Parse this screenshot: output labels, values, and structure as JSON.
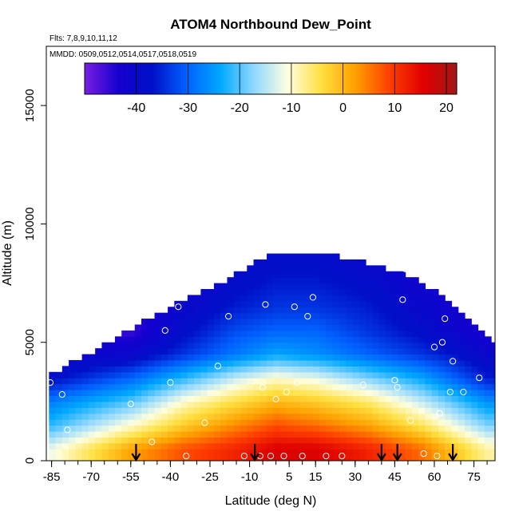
{
  "chart_data": {
    "type": "heatmap",
    "title": "ATOM4 Northbound Dew_Point",
    "flights_note": "Flts: 7,8,9,10,11,12",
    "dates_note": "MMDD: 0509,0512,0514,0517,0518,0519",
    "xlabel": "Latitude (deg N)",
    "ylabel": "Altitude (m)",
    "xlim": [
      -87,
      83
    ],
    "ylim": [
      0,
      17500
    ],
    "x_ticks": [
      -85,
      -70,
      -55,
      -40,
      -25,
      -10,
      5,
      15,
      30,
      45,
      60,
      75
    ],
    "y_ticks": [
      0,
      5000,
      10000,
      15000
    ],
    "colorbar": {
      "range": [
        -50,
        22
      ],
      "ticks": [
        -40,
        -30,
        -20,
        -10,
        0,
        10,
        20
      ],
      "colors": [
        "#7a1ee0",
        "#1500d0",
        "#0010c8",
        "#0060ff",
        "#00a8ff",
        "#8fd8ff",
        "#ffffe0",
        "#ffe040",
        "#ffa000",
        "#ff4000",
        "#e00000",
        "#a01818"
      ]
    },
    "dewpoint_profile": {
      "description_levels_m": [
        500,
        1500,
        2500,
        3500,
        4500,
        5500,
        6500,
        7500,
        8500
      ],
      "lat_nodes": [
        -86,
        -55,
        -35,
        -15,
        0,
        15,
        35,
        55,
        80
      ],
      "values": [
        [
          -12,
          2,
          8,
          12,
          16,
          16,
          12,
          6,
          -8
        ],
        [
          -22,
          -10,
          -2,
          4,
          8,
          6,
          2,
          -5,
          -18
        ],
        [
          -28,
          -20,
          -10,
          -4,
          0,
          -2,
          -6,
          -14,
          -26
        ],
        [
          -38,
          -30,
          -22,
          -14,
          -10,
          -12,
          -18,
          -24,
          -36
        ],
        [
          -42,
          -40,
          -34,
          -28,
          -24,
          -26,
          -30,
          -34,
          -40
        ],
        [
          -44,
          -46,
          -38,
          -32,
          -30,
          -30,
          -34,
          -38,
          -44
        ],
        [
          -44,
          -44,
          -40,
          -36,
          -34,
          -34,
          -36,
          -40,
          -44
        ],
        [
          -44,
          -44,
          -42,
          -38,
          -36,
          -36,
          -38,
          -42,
          -44
        ],
        [
          -44,
          -44,
          -42,
          -40,
          -38,
          -38,
          -40,
          -42,
          -44
        ]
      ]
    },
    "profile_tops_m": {
      "lat_nodes": [
        -86,
        -78,
        -68,
        -58,
        -48,
        -38,
        -28,
        -18,
        -10,
        0,
        10,
        20,
        30,
        40,
        50,
        58,
        66,
        74,
        82
      ],
      "top": [
        3500,
        4000,
        4600,
        5200,
        5900,
        6500,
        7000,
        7600,
        8100,
        8700,
        8700,
        8600,
        8400,
        8100,
        7700,
        7200,
        6600,
        5700,
        4900
      ]
    },
    "arrows_lat": [
      -53,
      -8,
      40,
      46,
      67
    ],
    "circles": [
      [
        -85.5,
        3300
      ],
      [
        -81,
        2800
      ],
      [
        -79,
        1300
      ],
      [
        -55,
        2400
      ],
      [
        -54,
        5900
      ],
      [
        -47,
        800
      ],
      [
        -42,
        5500
      ],
      [
        -40,
        3300
      ],
      [
        -37,
        6500
      ],
      [
        -34,
        200
      ],
      [
        -27,
        1600
      ],
      [
        -25,
        7700
      ],
      [
        -22,
        4000
      ],
      [
        -18,
        6100
      ],
      [
        -12,
        200
      ],
      [
        -6,
        200
      ],
      [
        -5,
        3100
      ],
      [
        -4,
        6600
      ],
      [
        -2,
        200
      ],
      [
        0,
        2600
      ],
      [
        3,
        200
      ],
      [
        4,
        2900
      ],
      [
        7,
        6500
      ],
      [
        8,
        3300
      ],
      [
        10,
        200
      ],
      [
        12,
        6100
      ],
      [
        14,
        6900
      ],
      [
        19,
        200
      ],
      [
        25,
        200
      ],
      [
        33,
        3200
      ],
      [
        44,
        8200
      ],
      [
        45,
        3400
      ],
      [
        46,
        3100
      ],
      [
        48,
        6800
      ],
      [
        49,
        8100
      ],
      [
        51,
        1700
      ],
      [
        52,
        8500
      ],
      [
        55,
        8000
      ],
      [
        56,
        300
      ],
      [
        60,
        4800
      ],
      [
        61,
        200
      ],
      [
        62,
        2000
      ],
      [
        63,
        5000
      ],
      [
        64,
        6000
      ],
      [
        66,
        2900
      ],
      [
        67,
        4200
      ],
      [
        71,
        2900
      ],
      [
        77,
        3500
      ],
      [
        82,
        6300
      ]
    ]
  }
}
